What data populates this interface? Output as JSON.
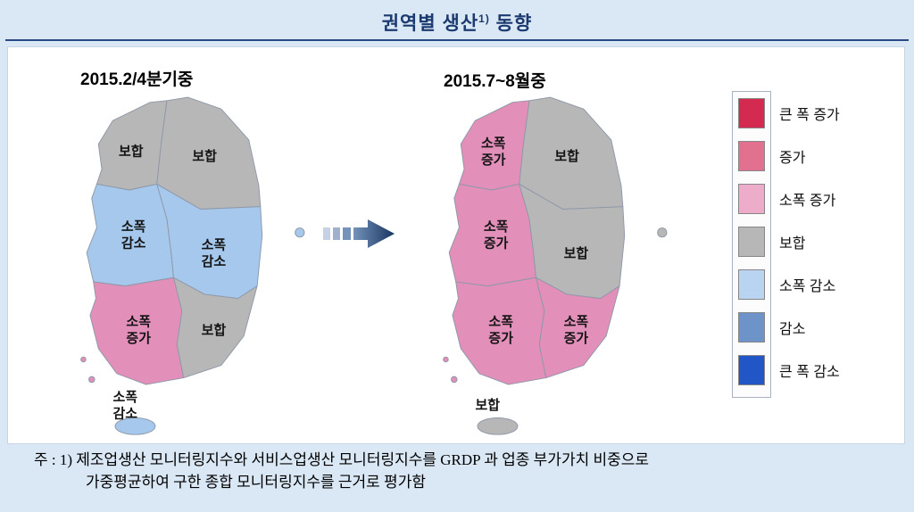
{
  "title": {
    "main": "권역별 생산",
    "sup": "1)",
    "tail": " 동향"
  },
  "maps": [
    {
      "caption": "2015.2/4분기중",
      "regions": {
        "capital": {
          "label": "보합",
          "color": "#b7b7b7"
        },
        "gangwon": {
          "label": "보합",
          "color": "#b7b7b7"
        },
        "chungcheong": {
          "label": "소폭\n감소",
          "color": "#a6c8ec"
        },
        "daegyeong": {
          "label": "소폭\n감소",
          "color": "#a6c8ec"
        },
        "honam": {
          "label": "소폭\n증가",
          "color": "#e28fba"
        },
        "gyeongnam": {
          "label": "보합",
          "color": "#b7b7b7"
        },
        "jeju": {
          "label": "소폭\n감소",
          "color": "#a6c8ec"
        }
      }
    },
    {
      "caption": "2015.7~8월중",
      "regions": {
        "capital": {
          "label": "소폭\n증가",
          "color": "#e28fba"
        },
        "gangwon": {
          "label": "보합",
          "color": "#b7b7b7"
        },
        "chungcheong": {
          "label": "소폭\n증가",
          "color": "#e28fba"
        },
        "daegyeong": {
          "label": "보합",
          "color": "#b7b7b7"
        },
        "honam": {
          "label": "소폭\n증가",
          "color": "#e28fba"
        },
        "gyeongnam": {
          "label": "소폭\n증가",
          "color": "#e28fba"
        },
        "jeju": {
          "label": "보합",
          "color": "#b7b7b7"
        }
      }
    }
  ],
  "legend": {
    "items": [
      {
        "label": "큰 폭 증가",
        "color": "#d42a50"
      },
      {
        "label": "증가",
        "color": "#e2708f"
      },
      {
        "label": "소폭 증가",
        "color": "#eeaccb"
      },
      {
        "label": "보합",
        "color": "#b7b7b7"
      },
      {
        "label": "소폭 감소",
        "color": "#b9d4f0"
      },
      {
        "label": "감소",
        "color": "#6e93c9"
      },
      {
        "label": "큰 폭 감소",
        "color": "#2255c6"
      }
    ]
  },
  "footnote": {
    "line1": "주 : 1) 제조업생산 모니터링지수와 서비스업생산 모니터링지수를 GRDP 과 업종 부가가치 비중으로",
    "line2": "가중평균하여 구한 종합 모니터링지수를 근거로 평가함"
  },
  "chart_data": {
    "type": "table",
    "title": "권역별 생산 동향",
    "columns": [
      "2015.2/4분기중",
      "2015.7~8월중"
    ],
    "rows": [
      {
        "region": "northwest-capital-area",
        "values": [
          "보합",
          "소폭 증가"
        ]
      },
      {
        "region": "northeast",
        "values": [
          "보합",
          "보합"
        ]
      },
      {
        "region": "west-central",
        "values": [
          "소폭 감소",
          "소폭 증가"
        ]
      },
      {
        "region": "east-central",
        "values": [
          "소폭 감소",
          "보합"
        ]
      },
      {
        "region": "southwest",
        "values": [
          "소폭 증가",
          "소폭 증가"
        ]
      },
      {
        "region": "southeast",
        "values": [
          "보합",
          "소폭 증가"
        ]
      },
      {
        "region": "jeju-island",
        "values": [
          "소폭 감소",
          "보합"
        ]
      }
    ],
    "legend_scale_top_to_bottom": [
      "큰 폭 증가",
      "증가",
      "소폭 증가",
      "보합",
      "소폭 감소",
      "감소",
      "큰 폭 감소"
    ]
  }
}
